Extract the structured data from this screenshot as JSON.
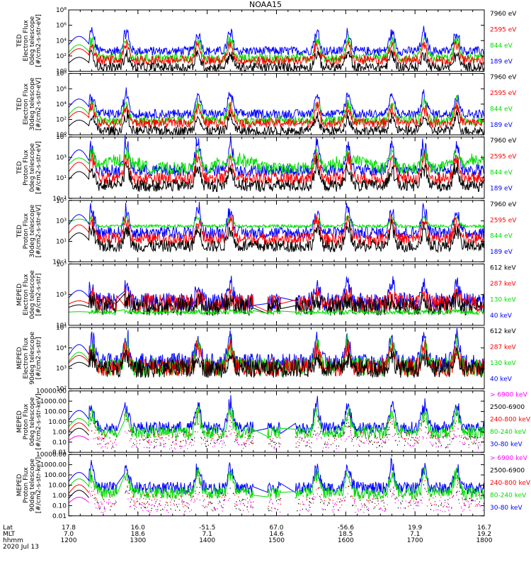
{
  "title": "NOAA15",
  "colors": {
    "blue": "#0000ff",
    "red": "#ff0000",
    "green": "#00dd00",
    "black": "#000000",
    "magenta": "#ff00ff"
  },
  "chart_data": [
    {
      "type": "line",
      "panel": 1,
      "ylabel": [
        "TED",
        "Electron Flux",
        "0deg telescope",
        "[#/cm2-s-str-eV]"
      ],
      "log_scale": true,
      "ylim": [
        1,
        100000000
      ],
      "yticks": [
        "10⁰",
        "10²",
        "10⁴",
        "10⁶",
        "10⁸"
      ],
      "legend": [
        {
          "label": "7960 eV",
          "color": "#000000"
        },
        {
          "label": "2595 eV",
          "color": "#ff0000"
        },
        {
          "label": "844 eV",
          "color": "#00dd00"
        },
        {
          "label": "189 eV",
          "color": "#0000ff"
        }
      ],
      "series": [
        {
          "color": "#0000ff",
          "baseline": 250,
          "peak": 300000,
          "start": 90
        },
        {
          "color": "#00dd00",
          "baseline": 30,
          "peak": 20000,
          "start": 90
        },
        {
          "color": "#ff0000",
          "baseline": 15,
          "peak": 5000,
          "start": 90
        },
        {
          "color": "#000000",
          "baseline": 2,
          "peak": 300,
          "start": 90
        }
      ]
    },
    {
      "type": "line",
      "panel": 2,
      "ylabel": [
        "TED",
        "Electron Flux",
        "30deg telescope",
        "[#/cm2-s-str-eV]"
      ],
      "log_scale": true,
      "ylim": [
        1,
        100000000
      ],
      "yticks": [
        "10⁰",
        "10²",
        "10⁴",
        "10⁶",
        "10⁸"
      ],
      "legend": [
        {
          "label": "7960 eV",
          "color": "#000000"
        },
        {
          "label": "2595 eV",
          "color": "#ff0000"
        },
        {
          "label": "844 eV",
          "color": "#00dd00"
        },
        {
          "label": "189 eV",
          "color": "#0000ff"
        }
      ],
      "series": [
        {
          "color": "#0000ff",
          "baseline": 300,
          "peak": 400000,
          "start": 90
        },
        {
          "color": "#00dd00",
          "baseline": 40,
          "peak": 30000,
          "start": 90
        },
        {
          "color": "#ff0000",
          "baseline": 20,
          "peak": 6000,
          "start": 90
        },
        {
          "color": "#000000",
          "baseline": 2,
          "peak": 400,
          "start": 90
        }
      ]
    },
    {
      "type": "line",
      "panel": 3,
      "ylabel": [
        "TED",
        "Proton Flux",
        "0deg telescope",
        "[#/cm2-s-str-eV]"
      ],
      "log_scale": true,
      "ylim": [
        0.1,
        100000
      ],
      "yticks": [
        "10⁻¹",
        "10¹",
        "10³",
        "10⁵"
      ],
      "legend": [
        {
          "label": "7960 eV",
          "color": "#000000"
        },
        {
          "label": "2595 eV",
          "color": "#ff0000"
        },
        {
          "label": "844 eV",
          "color": "#00dd00"
        },
        {
          "label": "189 eV",
          "color": "#0000ff"
        }
      ],
      "series": [
        {
          "color": "#0000ff",
          "baseline": 30,
          "peak": 50000,
          "start": 90
        },
        {
          "color": "#00dd00",
          "baseline": 50,
          "peak": 3000,
          "start": 90,
          "bumpy": true
        },
        {
          "color": "#ff0000",
          "baseline": 5,
          "peak": 2000,
          "start": 90
        },
        {
          "color": "#000000",
          "baseline": 1,
          "peak": 200,
          "start": 90
        }
      ]
    },
    {
      "type": "line",
      "panel": 4,
      "ylabel": [
        "TED",
        "Proton Flux",
        "30deg telescope",
        "[#/cm2-s-str-eV]"
      ],
      "log_scale": true,
      "ylim": [
        0.1,
        100000
      ],
      "yticks": [
        "10⁻¹",
        "10¹",
        "10³",
        "10⁵"
      ],
      "legend": [
        {
          "label": "7960 eV",
          "color": "#000000"
        },
        {
          "label": "2595 eV",
          "color": "#ff0000"
        },
        {
          "label": "844 eV",
          "color": "#00dd00"
        },
        {
          "label": "189 eV",
          "color": "#0000ff"
        }
      ],
      "series": [
        {
          "color": "#0000ff",
          "baseline": 40,
          "peak": 30000,
          "start": 90
        },
        {
          "color": "#00dd00",
          "baseline": 300,
          "peak": 3000,
          "start": 90,
          "flat": true
        },
        {
          "color": "#ff0000",
          "baseline": 10,
          "peak": 2000,
          "start": 90
        },
        {
          "color": "#000000",
          "baseline": 2,
          "peak": 300,
          "start": 90
        }
      ]
    },
    {
      "type": "line",
      "panel": 5,
      "ylabel": [
        "MEPED",
        "Electron Flux",
        "0deg telescope",
        "[#/cm2-s-str]"
      ],
      "log_scale": true,
      "ylim": [
        10,
        100000
      ],
      "yticks": [
        "10¹",
        "10³",
        "10⁵"
      ],
      "legend": [
        {
          "label": "612 keV",
          "color": "#000000"
        },
        {
          "label": "287 keV",
          "color": "#ff0000"
        },
        {
          "label": "130 keV",
          "color": "#00dd00"
        },
        {
          "label": "40 keV",
          "color": "#0000ff"
        }
      ],
      "series": [
        {
          "color": "#0000ff",
          "baseline": 200,
          "peak": 5000,
          "start": 90,
          "gappy": true
        },
        {
          "color": "#ff0000",
          "baseline": 150,
          "peak": 600,
          "start": 90,
          "gappy": true
        },
        {
          "color": "#000000",
          "baseline": 100,
          "peak": 300,
          "start": 90,
          "gappy": true
        },
        {
          "color": "#00dd00",
          "baseline": 70,
          "peak": 80,
          "start": 90,
          "gappy": true,
          "flat": true
        }
      ]
    },
    {
      "type": "line",
      "panel": 6,
      "ylabel": [
        "MEPED",
        "Electron Flux",
        "90deg telescope",
        "[#/cm2-s-str]"
      ],
      "log_scale": true,
      "ylim": [
        10,
        100000
      ],
      "yticks": [
        "10²",
        "10³",
        "10⁴",
        "10⁵"
      ],
      "legend": [
        {
          "label": "612 keV",
          "color": "#000000"
        },
        {
          "label": "287 keV",
          "color": "#ff0000"
        },
        {
          "label": "130 keV",
          "color": "#00dd00"
        },
        {
          "label": "40 keV",
          "color": "#0000ff"
        }
      ],
      "series": [
        {
          "color": "#0000ff",
          "baseline": 300,
          "peak": 30000,
          "start": 90
        },
        {
          "color": "#00dd00",
          "baseline": 150,
          "peak": 8000,
          "start": 90
        },
        {
          "color": "#ff0000",
          "baseline": 150,
          "peak": 4000,
          "start": 90
        },
        {
          "color": "#000000",
          "baseline": 120,
          "peak": 1000,
          "start": 90
        }
      ]
    },
    {
      "type": "line",
      "panel": 7,
      "ylabel": [
        "MEPED",
        "Proton Flux",
        "0deg telescope",
        "[#/cm2-s-str-keV]"
      ],
      "log_scale": true,
      "ylim": [
        0.01,
        10000
      ],
      "yticks": [
        "10000.00",
        "1000.00",
        "100.00",
        "10.00",
        "1.00",
        "0.10",
        "0.01"
      ],
      "legend": [
        {
          "label": "> 6900 keV",
          "color": "#ff00ff"
        },
        {
          "label": "2500-6900",
          "color": "#000000"
        },
        {
          "label": "240-800 keV",
          "color": "#ff0000"
        },
        {
          "label": "80-240 keV",
          "color": "#00dd00"
        },
        {
          "label": "30-80 keV",
          "color": "#0000ff"
        }
      ],
      "series": [
        {
          "color": "#0000ff",
          "baseline": 1.5,
          "peak": 800,
          "start": 90,
          "gappy": true
        },
        {
          "color": "#00dd00",
          "baseline": 0.5,
          "peak": 100,
          "start": 90,
          "gappy": true
        },
        {
          "color": "#ff0000",
          "baseline": 0.15,
          "peak": 40,
          "start": 90,
          "gappy": true,
          "sparse": true
        },
        {
          "color": "#000000",
          "baseline": 0.07,
          "peak": 10,
          "start": 90,
          "gappy": true,
          "sparse": true
        },
        {
          "color": "#ff00ff",
          "baseline": 0.05,
          "peak": 1,
          "start": 90,
          "gappy": true,
          "sparse": true
        }
      ]
    },
    {
      "type": "line",
      "panel": 8,
      "ylabel": [
        "MEPED",
        "Proton Flux",
        "90deg telescope",
        "[#/cm2-s-str-keV]"
      ],
      "log_scale": true,
      "ylim": [
        0.01,
        10000
      ],
      "yticks": [
        "10000.00",
        "1000.00",
        "100.00",
        "10.00",
        "1.00",
        "0.10",
        "0.01"
      ],
      "legend": [
        {
          "label": "> 6900 keV",
          "color": "#ff00ff"
        },
        {
          "label": "2500-6900",
          "color": "#000000"
        },
        {
          "label": "240-800 keV",
          "color": "#ff0000"
        },
        {
          "label": "80-240 keV",
          "color": "#00dd00"
        },
        {
          "label": "30-80 keV",
          "color": "#0000ff"
        }
      ],
      "series": [
        {
          "color": "#0000ff",
          "baseline": 3,
          "peak": 1000,
          "start": 90,
          "gappy": true
        },
        {
          "color": "#00dd00",
          "baseline": 1,
          "peak": 200,
          "start": 90,
          "gappy": true
        },
        {
          "color": "#ff0000",
          "baseline": 0.2,
          "peak": 60,
          "start": 90,
          "gappy": true,
          "sparse": true
        },
        {
          "color": "#000000",
          "baseline": 0.08,
          "peak": 15,
          "start": 90,
          "gappy": true,
          "sparse": true
        },
        {
          "color": "#ff00ff",
          "baseline": 0.05,
          "peak": 2,
          "start": 90,
          "gappy": true,
          "sparse": true
        }
      ]
    }
  ],
  "x_axis": {
    "row_labels": [
      "Lat",
      "MLT",
      "hhmm",
      "2020 Jul 13"
    ],
    "columns": [
      {
        "lat": "17.8",
        "mlt": "7.0",
        "hhmm": "1200"
      },
      {
        "lat": "16.0",
        "mlt": "18.6",
        "hhmm": "1300"
      },
      {
        "lat": "-51.5",
        "mlt": "7.1",
        "hhmm": "1400"
      },
      {
        "lat": "67.0",
        "mlt": "14.6",
        "hhmm": "1500"
      },
      {
        "lat": "-56.6",
        "mlt": "18.5",
        "hhmm": "1600"
      },
      {
        "lat": "19.9",
        "mlt": "7.1",
        "hhmm": "1700"
      },
      {
        "lat": "16.7",
        "mlt": "19.2",
        "hhmm": "1800"
      }
    ],
    "time_range_minutes": [
      0,
      360
    ],
    "peak_times_minutes": [
      20,
      50,
      112,
      140,
      215,
      242,
      280,
      308,
      336
    ]
  }
}
